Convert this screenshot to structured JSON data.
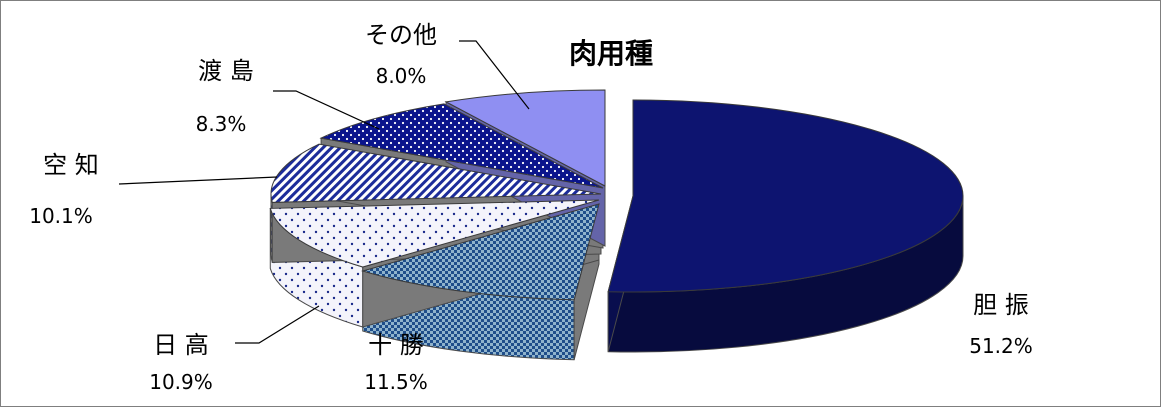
{
  "chart_data": {
    "type": "pie",
    "title": "肉用種",
    "style": "3d-exploded",
    "slices": [
      {
        "label": "胆 振",
        "value": 51.2,
        "value_label": "51.2%",
        "color": "#0d1470",
        "pattern": "solid"
      },
      {
        "label": "十 勝",
        "value": 11.5,
        "value_label": "11.5%",
        "color": "#1f4e8a",
        "pattern": "checker"
      },
      {
        "label": "日 高",
        "value": 10.9,
        "value_label": "10.9%",
        "color": "#1a2a8a",
        "pattern": "dots-light"
      },
      {
        "label": "空 知",
        "value": 10.1,
        "value_label": "10.1%",
        "color": "#1c2c9a",
        "pattern": "diagonal-stripes"
      },
      {
        "label": "渡 島",
        "value": 8.3,
        "value_label": "8.3%",
        "color": "#0a148c",
        "pattern": "dots-dense"
      },
      {
        "label": "その他",
        "value": 8.0,
        "value_label": "8.0%",
        "color": "#8f8ff2",
        "pattern": "solid"
      }
    ]
  }
}
